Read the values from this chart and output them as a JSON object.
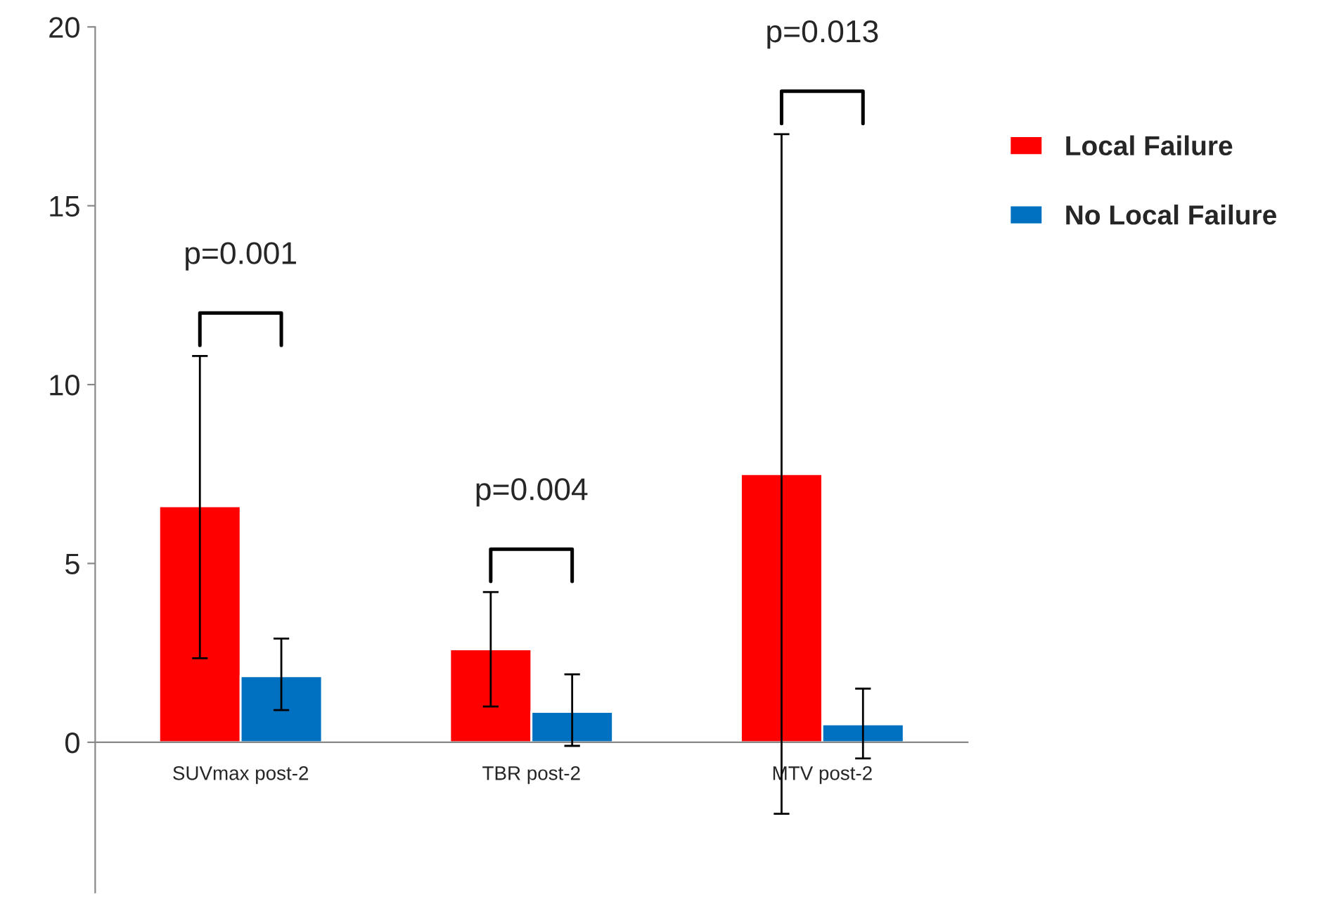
{
  "chart_data": {
    "type": "bar",
    "categories": [
      "SUVmax post-2",
      "TBR post-2",
      "MTV post-2"
    ],
    "series": [
      {
        "name": "Local Failure",
        "color": "#ff0000",
        "values": [
          6.6,
          2.6,
          7.5
        ],
        "errors": [
          [
            2.35,
            10.8
          ],
          [
            1.0,
            4.2
          ],
          [
            -2.0,
            17.0
          ]
        ]
      },
      {
        "name": "No Local Failure",
        "color": "#0070c0",
        "values": [
          1.85,
          0.85,
          0.5
        ],
        "errors": [
          [
            0.9,
            2.9
          ],
          [
            -0.1,
            1.9
          ],
          [
            -0.45,
            1.5
          ]
        ]
      }
    ],
    "ylim": [
      -4.2,
      20
    ],
    "yticks": [
      0,
      5,
      10,
      15,
      20
    ],
    "annotations": [
      "p=0.001",
      "p=0.004",
      "p=0.013"
    ],
    "grid": false,
    "legend": "right"
  }
}
